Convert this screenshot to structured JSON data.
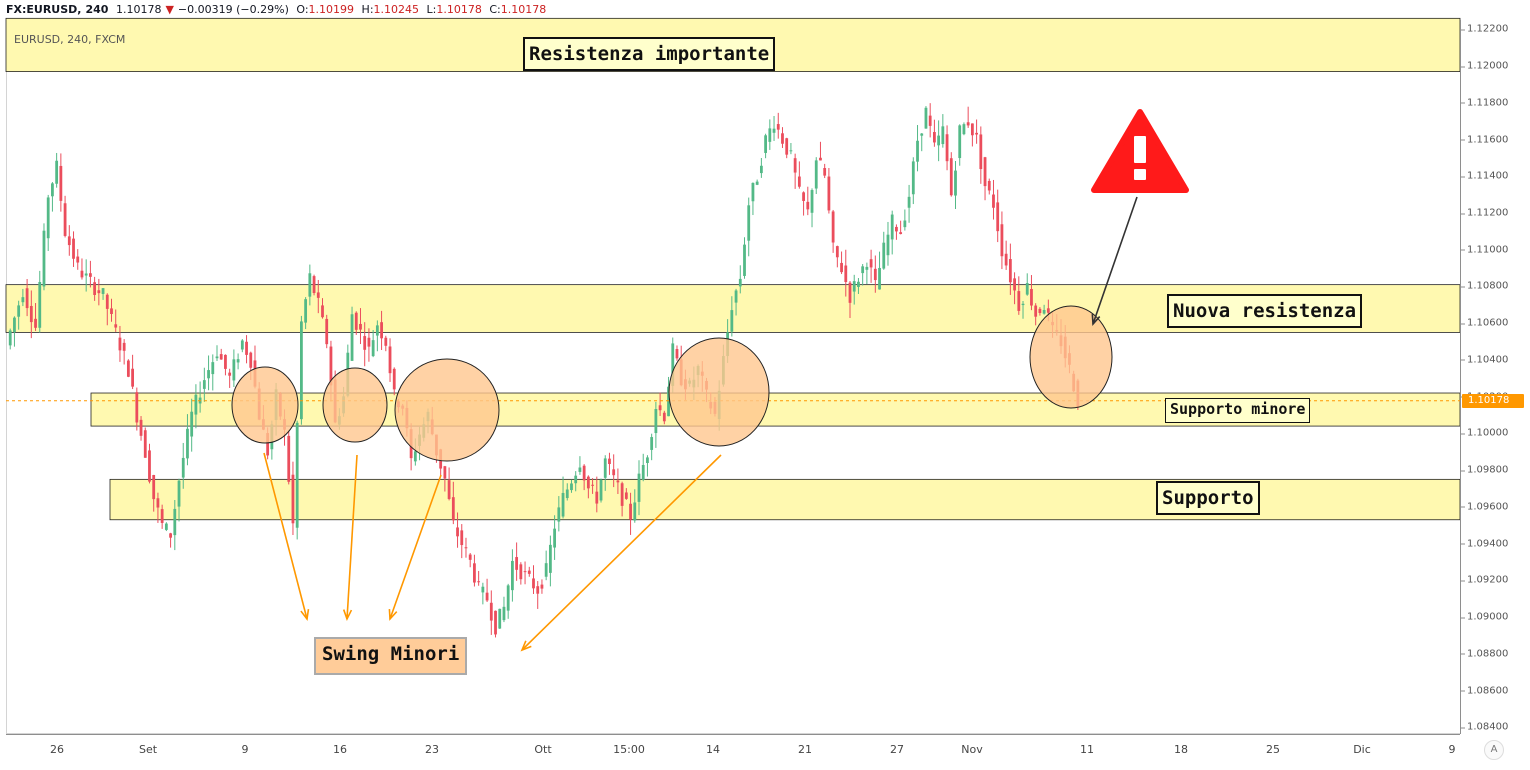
{
  "header": {
    "symbol": "FX:EURUSD,",
    "interval": "240",
    "last": "1.10178",
    "change": "−0.00319 (−0.29%)",
    "open_label": "O:",
    "open": "1.10199",
    "high_label": "H:",
    "high": "1.10245",
    "low_label": "L:",
    "low": "1.10178",
    "close_label": "C:",
    "close": "1.10178"
  },
  "symbol_label": "EURUSD, 240, FXCM",
  "colors": {
    "up": "#53b987",
    "down": "#eb4d5c",
    "zone_fill": "#fff9b0",
    "ellipse": "#ffc78e",
    "arrow": "#ff9800",
    "warning": "#ff1a1a",
    "last_price": "#ff9800"
  },
  "price_axis": {
    "ticks": [
      "1.12200",
      "1.12000",
      "1.11800",
      "1.11600",
      "1.11400",
      "1.11200",
      "1.11000",
      "1.10800",
      "1.10600",
      "1.10400",
      "1.10200",
      "1.10000",
      "1.09800",
      "1.09600",
      "1.09400",
      "1.09200",
      "1.09000",
      "1.08800",
      "1.08600",
      "1.08400"
    ],
    "last_price": "1.10178"
  },
  "time_axis": {
    "ticks": [
      "26",
      "Set",
      "9",
      "16",
      "23",
      "Ott",
      "15:00",
      "14",
      "21",
      "27",
      "Nov",
      "11",
      "18",
      "25",
      "Dic",
      "9"
    ]
  },
  "axis_button": "A",
  "annotations": {
    "resistenza_importante": "Resistenza importante",
    "nuova_resistenza": "Nuova resistenza",
    "supporto_minore": "Supporto minore",
    "supporto": "Supporto",
    "swing_minori": "Swing Minori",
    "warning_icon": "warning-triangle-icon"
  },
  "chart_data": {
    "type": "candlestick",
    "title": "EURUSD, 240, FXCM",
    "ylim": [
      1.0832,
      1.1224
    ],
    "grid": false,
    "zones": [
      {
        "name": "Resistenza importante",
        "low": 1.1197,
        "high": 1.1226
      },
      {
        "name": "Nuova resistenza",
        "low": 1.1055,
        "high": 1.1081
      },
      {
        "name": "Supporto minore",
        "low": 1.1004,
        "high": 1.1022
      },
      {
        "name": "Supporto",
        "low": 1.0953,
        "high": 1.0975
      }
    ],
    "last_price": 1.10178,
    "path": [
      [
        0,
        1.1048
      ],
      [
        4,
        1.1078
      ],
      [
        7,
        1.1058
      ],
      [
        10,
        1.113
      ],
      [
        12,
        1.1145
      ],
      [
        14,
        1.111
      ],
      [
        17,
        1.109
      ],
      [
        20,
        1.1082
      ],
      [
        23,
        1.1075
      ],
      [
        26,
        1.1055
      ],
      [
        29,
        1.1035
      ],
      [
        31,
        1.101
      ],
      [
        33,
        1.099
      ],
      [
        35,
        1.0965
      ],
      [
        37,
        1.095
      ],
      [
        39,
        1.0945
      ],
      [
        41,
        1.0975
      ],
      [
        44,
        1.101
      ],
      [
        47,
        1.103
      ],
      [
        50,
        1.1045
      ],
      [
        53,
        1.103
      ],
      [
        56,
        1.105
      ],
      [
        58,
        1.104
      ],
      [
        60,
        1.101
      ],
      [
        62,
        1.099
      ],
      [
        64,
        1.102
      ],
      [
        66,
        1.1
      ],
      [
        68,
        1.095
      ],
      [
        70,
        1.106
      ],
      [
        72,
        1.1085
      ],
      [
        74,
        1.107
      ],
      [
        76,
        1.105
      ],
      [
        78,
        1.1005
      ],
      [
        80,
        1.102
      ],
      [
        82,
        1.1065
      ],
      [
        84,
        1.1055
      ],
      [
        86,
        1.1045
      ],
      [
        88,
        1.106
      ],
      [
        90,
        1.105
      ],
      [
        92,
        1.102
      ],
      [
        94,
        1.1015
      ],
      [
        96,
        1.0985
      ],
      [
        98,
        1.1
      ],
      [
        100,
        1.101
      ],
      [
        102,
        1.099
      ],
      [
        104,
        1.0975
      ],
      [
        106,
        1.095
      ],
      [
        108,
        1.094
      ],
      [
        110,
        1.093
      ],
      [
        112,
        1.0915
      ],
      [
        114,
        1.091
      ],
      [
        116,
        1.0895
      ],
      [
        118,
        1.0905
      ],
      [
        120,
        1.093
      ],
      [
        122,
        1.0925
      ],
      [
        124,
        1.092
      ],
      [
        126,
        1.0915
      ],
      [
        128,
        1.0925
      ],
      [
        130,
        1.095
      ],
      [
        132,
        1.0965
      ],
      [
        134,
        1.0975
      ],
      [
        136,
        1.0985
      ],
      [
        138,
        1.097
      ],
      [
        140,
        1.0965
      ],
      [
        142,
        1.0985
      ],
      [
        144,
        1.0975
      ],
      [
        146,
        1.0965
      ],
      [
        148,
        1.0955
      ],
      [
        150,
        1.0975
      ],
      [
        152,
        1.099
      ],
      [
        154,
        1.1015
      ],
      [
        156,
        1.101
      ],
      [
        158,
        1.1045
      ],
      [
        160,
        1.103
      ],
      [
        162,
        1.1025
      ],
      [
        164,
        1.1035
      ],
      [
        166,
        1.102
      ],
      [
        168,
        1.101
      ],
      [
        170,
        1.104
      ],
      [
        172,
        1.107
      ],
      [
        174,
        1.1085
      ],
      [
        176,
        1.1125
      ],
      [
        178,
        1.114
      ],
      [
        180,
        1.116
      ],
      [
        182,
        1.117
      ],
      [
        184,
        1.116
      ],
      [
        186,
        1.115
      ],
      [
        188,
        1.113
      ],
      [
        190,
        1.112
      ],
      [
        192,
        1.115
      ],
      [
        194,
        1.114
      ],
      [
        196,
        1.11
      ],
      [
        198,
        1.109
      ],
      [
        200,
        1.1075
      ],
      [
        202,
        1.1085
      ],
      [
        204,
        1.1095
      ],
      [
        206,
        1.108
      ],
      [
        208,
        1.11
      ],
      [
        210,
        1.1115
      ],
      [
        212,
        1.111
      ],
      [
        214,
        1.113
      ],
      [
        216,
        1.116
      ],
      [
        218,
        1.1175
      ],
      [
        220,
        1.1155
      ],
      [
        222,
        1.1165
      ],
      [
        224,
        1.113
      ],
      [
        226,
        1.1165
      ],
      [
        228,
        1.117
      ],
      [
        230,
        1.116
      ],
      [
        232,
        1.1135
      ],
      [
        234,
        1.1125
      ],
      [
        236,
        1.11
      ],
      [
        238,
        1.1085
      ],
      [
        240,
        1.107
      ],
      [
        242,
        1.108
      ],
      [
        244,
        1.1065
      ],
      [
        246,
        1.107
      ],
      [
        248,
        1.1055
      ],
      [
        250,
        1.105
      ],
      [
        252,
        1.1035
      ],
      [
        254,
        1.1018
      ]
    ]
  }
}
